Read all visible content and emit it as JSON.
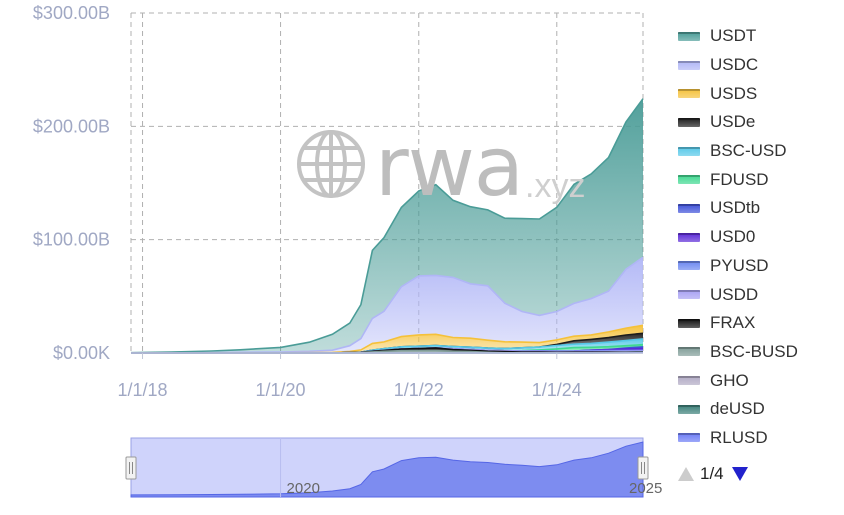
{
  "chart_data": {
    "type": "area",
    "stacked": true,
    "x_axis": {
      "type": "date",
      "ticks": [
        "1/1/18",
        "1/1/20",
        "1/1/22",
        "1/1/24"
      ],
      "tick_dates": [
        "2018-01-01",
        "2020-01-01",
        "2022-01-01",
        "2024-01-01"
      ],
      "range": [
        "2017-11-01",
        "2025-04-01"
      ]
    },
    "y_axis": {
      "ticks": [
        "$0.00K",
        "$100.00B",
        "$200.00B",
        "$300.00B"
      ],
      "tick_values": [
        0,
        100,
        200,
        300
      ],
      "unit": "billions USD",
      "range": [
        0,
        300
      ]
    },
    "grid": true,
    "legend_position": "right",
    "x": [
      "2017-11-01",
      "2018-06-01",
      "2019-01-01",
      "2019-06-01",
      "2020-01-01",
      "2020-06-01",
      "2020-10-01",
      "2021-01-01",
      "2021-03-01",
      "2021-05-01",
      "2021-07-01",
      "2021-10-01",
      "2022-01-01",
      "2022-04-01",
      "2022-07-01",
      "2022-10-01",
      "2023-01-01",
      "2023-04-01",
      "2023-07-01",
      "2023-10-01",
      "2024-01-01",
      "2024-04-01",
      "2024-07-01",
      "2024-10-01",
      "2025-01-01",
      "2025-04-01"
    ],
    "totals_approx": [
      0.5,
      1,
      2,
      3,
      5,
      10,
      17,
      27,
      45,
      100,
      112,
      148,
      160,
      162,
      150,
      143,
      140,
      132,
      128,
      122,
      130,
      150,
      160,
      180,
      210,
      228
    ],
    "series": [
      {
        "name": "USDT",
        "color": "#4a9c97",
        "values": [
          0.3,
          0.7,
          1.5,
          2.2,
          4,
          8,
          14,
          20,
          30,
          60,
          65,
          70,
          75,
          80,
          68,
          68,
          67,
          75,
          82,
          85,
          92,
          105,
          110,
          118,
          130,
          140
        ]
      },
      {
        "name": "USDC",
        "color": "#b0b6f6",
        "values": [
          0,
          0.1,
          0.2,
          0.4,
          0.7,
          1.2,
          2,
          5,
          10,
          22,
          27,
          44,
          52,
          52,
          53,
          48,
          48,
          34,
          27,
          24,
          25,
          29,
          32,
          36,
          52,
          60
        ]
      },
      {
        "name": "USDS",
        "color": "#f5c13a",
        "values": [
          0,
          0,
          0.1,
          0.2,
          0.2,
          0.3,
          0.5,
          1,
          2,
          6,
          6,
          9,
          10,
          10,
          8,
          8,
          7,
          6,
          5,
          4,
          4,
          4,
          4,
          5,
          6,
          7
        ]
      },
      {
        "name": "USDe",
        "color": "#1c1c1c",
        "values": [
          0,
          0,
          0,
          0,
          0,
          0,
          0,
          0,
          0,
          0,
          0,
          0,
          0,
          0,
          0,
          0,
          0,
          0,
          0,
          0,
          1,
          3,
          3.5,
          4,
          5,
          5
        ]
      },
      {
        "name": "BSC-USD",
        "color": "#56c8e8",
        "values": [
          0,
          0,
          0,
          0,
          0,
          0,
          0,
          0,
          0,
          1,
          1.5,
          2,
          2,
          2,
          2,
          2,
          2,
          2,
          2.5,
          2.5,
          3,
          3,
          3.5,
          4,
          4.5,
          5
        ]
      },
      {
        "name": "FDUSD",
        "color": "#3fd890",
        "values": [
          0,
          0,
          0,
          0,
          0,
          0,
          0,
          0,
          0,
          0,
          0,
          0,
          0,
          0,
          0,
          0,
          0,
          0,
          0.5,
          1,
          2,
          3,
          2.5,
          2.5,
          2,
          2
        ]
      },
      {
        "name": "USDtb",
        "color": "#3d50d8",
        "values": [
          0,
          0,
          0,
          0,
          0,
          0,
          0,
          0,
          0,
          0,
          0,
          0,
          0,
          0,
          0,
          0,
          0,
          0,
          0,
          0,
          0,
          0,
          0,
          0,
          1,
          1.5
        ]
      },
      {
        "name": "USD0",
        "color": "#5a28d6",
        "values": [
          0,
          0,
          0,
          0,
          0,
          0,
          0,
          0,
          0,
          0,
          0,
          0,
          0,
          0,
          0,
          0,
          0,
          0,
          0,
          0,
          0,
          0,
          0.5,
          1,
          1.2,
          1.5
        ]
      },
      {
        "name": "PYUSD",
        "color": "#6a86f0",
        "values": [
          0,
          0,
          0,
          0,
          0,
          0,
          0,
          0,
          0,
          0,
          0,
          0,
          0,
          0,
          0,
          0,
          0,
          0,
          0,
          0.2,
          0.3,
          0.4,
          0.6,
          0.6,
          0.6,
          0.7
        ]
      },
      {
        "name": "USDD",
        "color": "#a7a0f3",
        "values": [
          0,
          0,
          0,
          0,
          0,
          0,
          0,
          0,
          0,
          0,
          0,
          0,
          0,
          0,
          0.7,
          0.7,
          0.7,
          0.7,
          0.7,
          0.7,
          0.7,
          0.7,
          0.7,
          0.7,
          0.7,
          0.7
        ]
      },
      {
        "name": "FRAX",
        "color": "#111111",
        "values": [
          0,
          0,
          0,
          0,
          0,
          0,
          0,
          0.1,
          0.2,
          0.5,
          0.8,
          1.5,
          2,
          2.5,
          1.5,
          1.2,
          1,
          1,
          0.8,
          0.7,
          0.6,
          0.6,
          0.5,
          0.5,
          0.4,
          0.4
        ]
      },
      {
        "name": "BSC-BUSD",
        "color": "#7f9c97",
        "values": [
          0,
          0,
          0,
          0,
          0,
          0,
          0,
          0.3,
          0.5,
          1,
          1.5,
          2,
          2,
          2,
          1.5,
          1.2,
          0.6,
          0.2,
          0.1,
          0.1,
          0,
          0,
          0,
          0,
          0,
          0
        ]
      },
      {
        "name": "GHO",
        "color": "#b1aac4",
        "values": [
          0,
          0,
          0,
          0,
          0,
          0,
          0,
          0,
          0,
          0,
          0,
          0,
          0,
          0,
          0,
          0,
          0,
          0,
          0,
          0,
          0,
          0.1,
          0.1,
          0.1,
          0.2,
          0.2
        ]
      },
      {
        "name": "deUSD",
        "color": "#3b7f78",
        "values": [
          0,
          0,
          0,
          0,
          0,
          0,
          0,
          0,
          0,
          0,
          0,
          0,
          0,
          0,
          0,
          0,
          0,
          0,
          0,
          0,
          0,
          0,
          0.1,
          0.2,
          0.2,
          0.2
        ]
      },
      {
        "name": "RLUSD",
        "color": "#6b7bf5",
        "values": [
          0,
          0,
          0,
          0,
          0,
          0,
          0,
          0,
          0,
          0,
          0,
          0,
          0,
          0,
          0,
          0,
          0,
          0,
          0,
          0,
          0,
          0,
          0,
          0,
          0.1,
          0.2
        ]
      }
    ],
    "watermark": {
      "main": "rwa",
      "sub": ".xyz"
    },
    "navigator": {
      "labels": [
        "2020",
        "2025"
      ],
      "range": [
        "2017-11-01",
        "2025-04-01"
      ]
    }
  },
  "legend_pager": {
    "text": "1/4",
    "up_icon": "triangle-up-icon",
    "down_icon": "triangle-down-icon"
  }
}
